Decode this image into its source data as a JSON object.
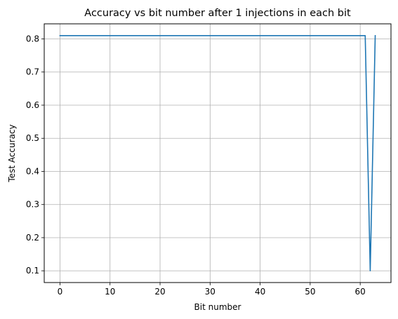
{
  "chart_data": {
    "type": "line",
    "title": "Accuracy vs bit number after 1 injections in each bit",
    "xlabel": "Bit number",
    "ylabel": "Test Accuracy",
    "xlim": [
      -3.15,
      66.15
    ],
    "ylim": [
      0.0645,
      0.8455
    ],
    "xticks": [
      0,
      10,
      20,
      30,
      40,
      50,
      60
    ],
    "xtick_labels": [
      "0",
      "10",
      "20",
      "30",
      "40",
      "50",
      "60"
    ],
    "yticks": [
      0.1,
      0.2,
      0.3,
      0.4,
      0.5,
      0.6,
      0.7,
      0.8
    ],
    "ytick_labels": [
      "0.1",
      "0.2",
      "0.3",
      "0.4",
      "0.5",
      "0.6",
      "0.7",
      "0.8"
    ],
    "grid": true,
    "line_color": "#1f77b4",
    "series": [
      {
        "x": [
          0,
          1,
          2,
          3,
          4,
          5,
          6,
          7,
          8,
          9,
          10,
          11,
          12,
          13,
          14,
          15,
          16,
          17,
          18,
          19,
          20,
          21,
          22,
          23,
          24,
          25,
          26,
          27,
          28,
          29,
          30,
          31,
          32,
          33,
          34,
          35,
          36,
          37,
          38,
          39,
          40,
          41,
          42,
          43,
          44,
          45,
          46,
          47,
          48,
          49,
          50,
          51,
          52,
          53,
          54,
          55,
          56,
          57,
          58,
          59,
          60,
          61,
          62,
          63
        ],
        "values": [
          0.81,
          0.81,
          0.81,
          0.81,
          0.81,
          0.81,
          0.81,
          0.81,
          0.81,
          0.81,
          0.81,
          0.81,
          0.81,
          0.81,
          0.81,
          0.81,
          0.81,
          0.81,
          0.81,
          0.81,
          0.81,
          0.81,
          0.81,
          0.81,
          0.81,
          0.81,
          0.81,
          0.81,
          0.81,
          0.81,
          0.81,
          0.81,
          0.81,
          0.81,
          0.81,
          0.81,
          0.81,
          0.81,
          0.81,
          0.81,
          0.81,
          0.81,
          0.81,
          0.81,
          0.81,
          0.81,
          0.81,
          0.81,
          0.81,
          0.81,
          0.81,
          0.81,
          0.81,
          0.81,
          0.81,
          0.81,
          0.81,
          0.81,
          0.81,
          0.81,
          0.81,
          0.81,
          0.1,
          0.81
        ]
      }
    ]
  }
}
